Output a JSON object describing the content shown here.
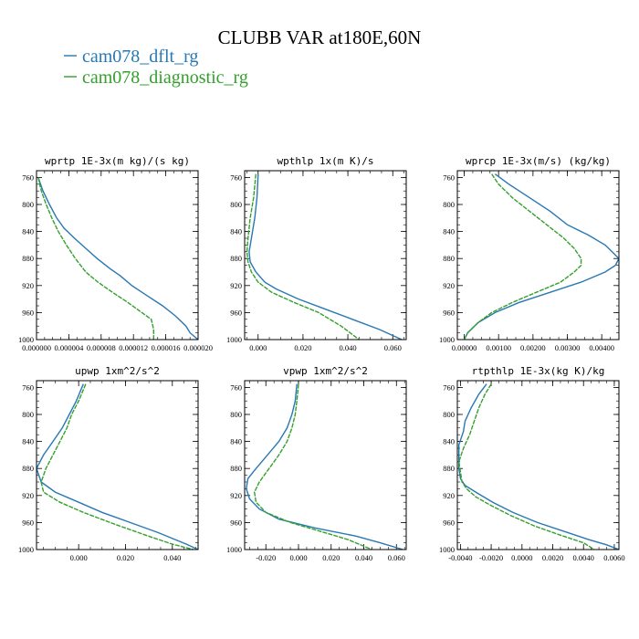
{
  "figure": {
    "title": "CLUBB VAR at180E,60N",
    "legend": [
      {
        "label": "cam078_dflt_rg",
        "color": "#2878b4"
      },
      {
        "label": "cam078_diagnostic_rg",
        "color": "#33a02c"
      }
    ]
  },
  "chart_data": [
    {
      "type": "line",
      "title": "wprtp  1E-3x(m kg)/(s kg)",
      "xlim": [
        0,
        2e-05
      ],
      "ylim": [
        1000,
        750
      ],
      "yticks": [
        1000,
        960,
        920,
        880,
        840,
        800,
        760
      ],
      "ytick_labels": [
        "1000",
        "960",
        "920",
        "880",
        "840",
        "800",
        "760"
      ],
      "xticks": [
        0,
        4e-06,
        8e-06,
        1.2e-05,
        1.6e-05,
        2e-05
      ],
      "xtick_labels": [
        "0.000000",
        "0.000004",
        "0.000008",
        "0.000012",
        "0.000016",
        "0.000020"
      ],
      "series": [
        {
          "color": "#2878b4",
          "dashed": false,
          "points": [
            [
              2e-07,
              760
            ],
            [
              8e-07,
              780
            ],
            [
              1.6e-06,
              800
            ],
            [
              2.5e-06,
              820
            ],
            [
              3.4e-06,
              835
            ],
            [
              4.7e-06,
              850
            ],
            [
              6.1e-06,
              865
            ],
            [
              7.5e-06,
              880
            ],
            [
              9.1e-06,
              895
            ],
            [
              1.03e-05,
              905
            ],
            [
              1.18e-05,
              920
            ],
            [
              1.37e-05,
              935
            ],
            [
              1.56e-05,
              950
            ],
            [
              1.72e-05,
              965
            ],
            [
              1.85e-05,
              980
            ],
            [
              1.9e-05,
              990
            ],
            [
              2e-05,
              1000
            ]
          ]
        },
        {
          "color": "#33a02c",
          "dashed": true,
          "points": [
            [
              2e-07,
              760
            ],
            [
              6e-07,
              780
            ],
            [
              1.2e-06,
              800
            ],
            [
              1.9e-06,
              820
            ],
            [
              2.7e-06,
              840
            ],
            [
              3.7e-06,
              860
            ],
            [
              4.8e-06,
              880
            ],
            [
              6.1e-06,
              900
            ],
            [
              7.6e-06,
              915
            ],
            [
              9.4e-06,
              930
            ],
            [
              1.13e-05,
              945
            ],
            [
              1.28e-05,
              958
            ],
            [
              1.42e-05,
              970
            ],
            [
              1.45e-05,
              985
            ],
            [
              1.45e-05,
              1000
            ]
          ]
        }
      ]
    },
    {
      "type": "line",
      "title": "wpthlp  1x(m K)/s",
      "xlim": [
        -0.006,
        0.066
      ],
      "ylim": [
        1000,
        750
      ],
      "yticks": [
        1000,
        960,
        920,
        880,
        840,
        800,
        760
      ],
      "ytick_labels": [
        "1000",
        "960",
        "920",
        "880",
        "840",
        "800",
        "760"
      ],
      "xticks": [
        0,
        0.02,
        0.04,
        0.06
      ],
      "xtick_labels": [
        "0.000",
        "0.020",
        "0.040",
        "0.060"
      ],
      "series": [
        {
          "color": "#2878b4",
          "dashed": false,
          "points": [
            [
              0.0,
              755
            ],
            [
              -0.0005,
              790
            ],
            [
              -0.0015,
              820
            ],
            [
              -0.003,
              850
            ],
            [
              -0.004,
              870
            ],
            [
              -0.0035,
              885
            ],
            [
              -0.001,
              900
            ],
            [
              0.003,
              915
            ],
            [
              0.008,
              925
            ],
            [
              0.018,
              940
            ],
            [
              0.03,
              955
            ],
            [
              0.042,
              970
            ],
            [
              0.054,
              985
            ],
            [
              0.064,
              1000
            ]
          ]
        },
        {
          "color": "#33a02c",
          "dashed": true,
          "points": [
            [
              -0.001,
              755
            ],
            [
              -0.002,
              790
            ],
            [
              -0.0035,
              820
            ],
            [
              -0.0045,
              850
            ],
            [
              -0.005,
              870
            ],
            [
              -0.0045,
              885
            ],
            [
              -0.003,
              900
            ],
            [
              0.0,
              915
            ],
            [
              0.006,
              930
            ],
            [
              0.016,
              945
            ],
            [
              0.027,
              960
            ],
            [
              0.037,
              980
            ],
            [
              0.045,
              1000
            ]
          ]
        }
      ]
    },
    {
      "type": "line",
      "title": "wprcp  1E-3x(m/s) (kg/kg)",
      "xlim": [
        -0.0002,
        0.0045
      ],
      "ylim": [
        1000,
        750
      ],
      "yticks": [
        1000,
        960,
        920,
        880,
        840,
        800,
        760
      ],
      "ytick_labels": [
        "1000",
        "960",
        "920",
        "880",
        "840",
        "800",
        "760"
      ],
      "xticks": [
        0,
        0.001,
        0.002,
        0.003,
        0.004
      ],
      "xtick_labels": [
        "0.00000",
        "0.00100",
        "0.00200",
        "0.00300",
        "0.00400"
      ],
      "series": [
        {
          "color": "#2878b4",
          "dashed": false,
          "points": [
            [
              0.0009,
              755
            ],
            [
              0.0013,
              770
            ],
            [
              0.0019,
              790
            ],
            [
              0.0025,
              810
            ],
            [
              0.003,
              830
            ],
            [
              0.0036,
              845
            ],
            [
              0.0041,
              860
            ],
            [
              0.0043,
              870
            ],
            [
              0.0045,
              880
            ],
            [
              0.0044,
              890
            ],
            [
              0.0041,
              900
            ],
            [
              0.0034,
              915
            ],
            [
              0.0025,
              930
            ],
            [
              0.0016,
              945
            ],
            [
              0.0009,
              960
            ],
            [
              0.0004,
              975
            ],
            [
              0.0001,
              990
            ],
            [
              0.0,
              1000
            ]
          ]
        },
        {
          "color": "#33a02c",
          "dashed": true,
          "points": [
            [
              0.0008,
              755
            ],
            [
              0.001,
              770
            ],
            [
              0.0014,
              790
            ],
            [
              0.0019,
              810
            ],
            [
              0.0024,
              830
            ],
            [
              0.0029,
              850
            ],
            [
              0.0032,
              865
            ],
            [
              0.0034,
              880
            ],
            [
              0.0034,
              890
            ],
            [
              0.0032,
              900
            ],
            [
              0.0028,
              915
            ],
            [
              0.0021,
              930
            ],
            [
              0.0014,
              945
            ],
            [
              0.0008,
              960
            ],
            [
              0.0004,
              975
            ],
            [
              0.0001,
              990
            ],
            [
              0.0,
              1000
            ]
          ]
        }
      ]
    },
    {
      "type": "line",
      "title": "upwp   1xm^2/s^2",
      "xlim": [
        -0.018,
        0.051
      ],
      "ylim": [
        1000,
        750
      ],
      "yticks": [
        1000,
        960,
        920,
        880,
        840,
        800,
        760
      ],
      "ytick_labels": [
        "1000",
        "960",
        "920",
        "880",
        "840",
        "800",
        "760"
      ],
      "xticks": [
        0,
        0.02,
        0.04
      ],
      "xtick_labels": [
        "0.000",
        "0.020",
        "0.040"
      ],
      "series": [
        {
          "color": "#2878b4",
          "dashed": false,
          "points": [
            [
              0.002,
              755
            ],
            [
              -0.001,
              780
            ],
            [
              -0.004,
              800
            ],
            [
              -0.007,
              820
            ],
            [
              -0.011,
              840
            ],
            [
              -0.015,
              860
            ],
            [
              -0.018,
              880
            ],
            [
              -0.016,
              900
            ],
            [
              -0.01,
              915
            ],
            [
              0.0,
              930
            ],
            [
              0.01,
              945
            ],
            [
              0.022,
              960
            ],
            [
              0.034,
              975
            ],
            [
              0.046,
              992
            ],
            [
              0.051,
              1000
            ]
          ]
        },
        {
          "color": "#33a02c",
          "dashed": true,
          "points": [
            [
              0.003,
              755
            ],
            [
              0.0,
              780
            ],
            [
              -0.003,
              800
            ],
            [
              -0.005,
              820
            ],
            [
              -0.008,
              840
            ],
            [
              -0.011,
              860
            ],
            [
              -0.014,
              880
            ],
            [
              -0.016,
              900
            ],
            [
              -0.015,
              915
            ],
            [
              -0.008,
              930
            ],
            [
              0.002,
              945
            ],
            [
              0.015,
              962
            ],
            [
              0.028,
              978
            ],
            [
              0.04,
              992
            ],
            [
              0.049,
              1000
            ]
          ]
        }
      ]
    },
    {
      "type": "line",
      "title": "vpwp   1xm^2/s^2",
      "xlim": [
        -0.033,
        0.066
      ],
      "ylim": [
        1000,
        750
      ],
      "yticks": [
        1000,
        960,
        920,
        880,
        840,
        800,
        760
      ],
      "ytick_labels": [
        "1000",
        "960",
        "920",
        "880",
        "840",
        "800",
        "760"
      ],
      "xticks": [
        -0.02,
        0,
        0.02,
        0.04,
        0.06
      ],
      "xtick_labels": [
        "-0.020",
        "0.000",
        "0.020",
        "0.040",
        "0.060"
      ],
      "series": [
        {
          "color": "#2878b4",
          "dashed": false,
          "points": [
            [
              -0.001,
              755
            ],
            [
              -0.002,
              780
            ],
            [
              -0.004,
              800
            ],
            [
              -0.007,
              820
            ],
            [
              -0.012,
              840
            ],
            [
              -0.019,
              860
            ],
            [
              -0.026,
              880
            ],
            [
              -0.031,
              895
            ],
            [
              -0.032,
              910
            ],
            [
              -0.03,
              925
            ],
            [
              -0.024,
              940
            ],
            [
              -0.012,
              955
            ],
            [
              0.01,
              968
            ],
            [
              0.035,
              980
            ],
            [
              0.05,
              990
            ],
            [
              0.064,
              1000
            ]
          ]
        },
        {
          "color": "#33a02c",
          "dashed": true,
          "points": [
            [
              0.0,
              755
            ],
            [
              -0.001,
              780
            ],
            [
              -0.002,
              800
            ],
            [
              -0.004,
              820
            ],
            [
              -0.007,
              840
            ],
            [
              -0.012,
              860
            ],
            [
              -0.018,
              880
            ],
            [
              -0.024,
              900
            ],
            [
              -0.027,
              915
            ],
            [
              -0.026,
              930
            ],
            [
              -0.02,
              945
            ],
            [
              -0.005,
              960
            ],
            [
              0.012,
              972
            ],
            [
              0.03,
              985
            ],
            [
              0.045,
              1000
            ]
          ]
        }
      ]
    },
    {
      "type": "line",
      "title": "rtpthlp  1E-3x(kg K)/kg",
      "xlim": [
        -0.0042,
        0.0063
      ],
      "ylim": [
        1000,
        750
      ],
      "yticks": [
        1000,
        960,
        920,
        880,
        840,
        800,
        760
      ],
      "ytick_labels": [
        "1000",
        "960",
        "920",
        "880",
        "840",
        "800",
        "760"
      ],
      "xticks": [
        -0.004,
        -0.002,
        0,
        0.002,
        0.004,
        0.006
      ],
      "xtick_labels": [
        "-0.0040",
        "-0.0020",
        "0.0000",
        "0.0020",
        "0.0040",
        "0.0060"
      ],
      "series": [
        {
          "color": "#2878b4",
          "dashed": false,
          "points": [
            [
              -0.0023,
              755
            ],
            [
              -0.0028,
              770
            ],
            [
              -0.0033,
              790
            ],
            [
              -0.0037,
              810
            ],
            [
              -0.0038,
              825
            ],
            [
              -0.0041,
              845
            ],
            [
              -0.0041,
              860
            ],
            [
              -0.0041,
              880
            ],
            [
              -0.004,
              895
            ],
            [
              -0.0037,
              905
            ],
            [
              -0.003,
              915
            ],
            [
              -0.0019,
              930
            ],
            [
              -0.0006,
              945
            ],
            [
              0.001,
              960
            ],
            [
              0.0026,
              972
            ],
            [
              0.0043,
              985
            ],
            [
              0.0055,
              993
            ],
            [
              0.0063,
              1000
            ]
          ]
        },
        {
          "color": "#33a02c",
          "dashed": true,
          "points": [
            [
              -0.002,
              755
            ],
            [
              -0.0024,
              770
            ],
            [
              -0.0028,
              790
            ],
            [
              -0.0031,
              810
            ],
            [
              -0.0034,
              830
            ],
            [
              -0.0038,
              850
            ],
            [
              -0.0041,
              870
            ],
            [
              -0.004,
              885
            ],
            [
              -0.0039,
              900
            ],
            [
              -0.0036,
              910
            ],
            [
              -0.003,
              922
            ],
            [
              -0.002,
              935
            ],
            [
              -0.0007,
              950
            ],
            [
              0.0008,
              965
            ],
            [
              0.0024,
              978
            ],
            [
              0.004,
              990
            ],
            [
              0.0047,
              1000
            ]
          ]
        }
      ]
    }
  ]
}
